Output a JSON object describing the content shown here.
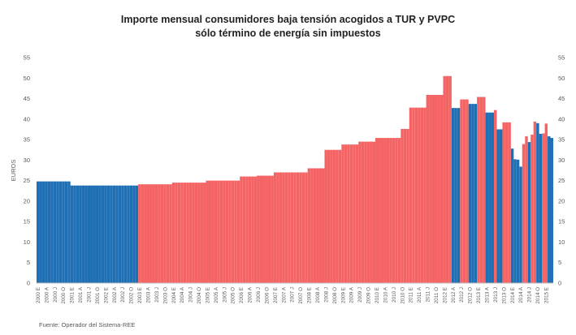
{
  "chart_data": {
    "type": "bar",
    "title_lines": [
      "Importe mensual consumidores baja tensión acogidos a TUR y PVPC",
      "sólo término de energía sin impuestos"
    ],
    "ylabel": "EUROS",
    "ylim": [
      0,
      55
    ],
    "yticks": [
      0,
      5,
      10,
      15,
      20,
      25,
      30,
      35,
      40,
      45,
      50,
      55
    ],
    "secondary_y_axis": true,
    "grid": false,
    "source": "Fuente: Operador del Sistema-REE",
    "colors": {
      "blue": "#1f6fb4",
      "red": "#f46464"
    },
    "x_labels": [
      "2000 E",
      "2000 A",
      "2000 J",
      "2000 O",
      "2001 E",
      "2001 A",
      "2001 J",
      "2001 O",
      "2002 E",
      "2002 A",
      "2002 J",
      "2002 O",
      "2003 E",
      "2003 A",
      "2003 J",
      "2003 O",
      "2004 E",
      "2004 A",
      "2004 J",
      "2004 O",
      "2005 E",
      "2005 A",
      "2005 J",
      "2005 O",
      "2006 E",
      "2006 A",
      "2006 J",
      "2006 O",
      "2007 E",
      "2007 A",
      "2007 J",
      "2007 O",
      "2008 E",
      "2008 A",
      "2008 J",
      "2008 O",
      "2009 E",
      "2009 A",
      "2009 J",
      "2009 O",
      "2010 E",
      "2010 A",
      "2010 J",
      "2010 O",
      "2011 E",
      "2011 A",
      "2011 J",
      "2011 O",
      "2012 E",
      "2012 A",
      "2012 J",
      "2012 O",
      "2013 E",
      "2013 A",
      "2013 J",
      "2013 O",
      "2014 E",
      "2014 A",
      "2014 J",
      "2014 O",
      "2015 E"
    ],
    "series": [
      {
        "color": "blue",
        "values": [
          24.8,
          24.8,
          24.8,
          24.8,
          24.8,
          24.8,
          24.8,
          24.8,
          24.8,
          24.8,
          24.8,
          24.8,
          23.8,
          23.8,
          23.8,
          23.8,
          23.8,
          23.8,
          23.8,
          23.8,
          23.8,
          23.8,
          23.8,
          23.8,
          23.8,
          23.8,
          23.8,
          23.8,
          23.8,
          23.8,
          23.8,
          23.8,
          23.8,
          23.8,
          23.8,
          23.8
        ]
      },
      {
        "color": "red",
        "values": [
          24.1,
          24.1,
          24.1,
          24.1,
          24.1,
          24.1,
          24.1,
          24.1,
          24.1,
          24.1,
          24.1,
          24.1,
          24.5,
          24.5,
          24.5,
          24.5,
          24.5,
          24.5,
          24.5,
          24.5,
          24.5,
          24.5,
          24.5,
          24.5,
          25.0,
          25.0,
          25.0,
          25.0,
          25.0,
          25.0,
          25.0,
          25.0,
          25.0,
          25.0,
          25.0,
          25.0,
          26.0,
          26.0,
          26.0,
          26.0,
          26.0,
          26.0,
          26.2,
          26.2,
          26.2,
          26.2,
          26.2,
          26.2,
          27.0,
          27.0,
          27.0,
          27.0,
          27.0,
          27.0,
          27.0,
          27.0,
          27.0,
          27.0,
          27.0,
          27.0,
          28.0,
          28.0,
          28.0,
          28.0,
          28.0,
          28.0,
          32.5,
          32.5,
          32.5,
          32.5,
          32.5,
          32.5,
          33.8,
          33.8,
          33.8,
          33.8,
          33.8,
          33.8,
          34.5,
          34.5,
          34.5,
          34.5,
          34.5,
          34.5,
          35.4,
          35.4,
          35.4,
          35.4,
          35.4,
          35.4,
          35.4,
          35.4,
          35.4,
          37.6,
          37.6,
          37.6,
          42.8,
          42.8,
          42.8,
          42.8,
          42.8,
          42.8,
          45.9,
          45.9,
          45.9,
          45.9,
          45.9,
          45.9,
          50.5,
          50.5,
          50.5
        ]
      },
      {
        "color": "mixed",
        "values": [
          {
            "v": 42.7,
            "c": "blue"
          },
          {
            "v": 42.7,
            "c": "blue"
          },
          {
            "v": 42.7,
            "c": "blue"
          },
          {
            "v": 44.8,
            "c": "red"
          },
          {
            "v": 44.8,
            "c": "red"
          },
          {
            "v": 44.8,
            "c": "red"
          },
          {
            "v": 43.7,
            "c": "blue"
          },
          {
            "v": 43.7,
            "c": "blue"
          },
          {
            "v": 43.7,
            "c": "blue"
          },
          {
            "v": 45.4,
            "c": "red"
          },
          {
            "v": 45.4,
            "c": "red"
          },
          {
            "v": 45.4,
            "c": "red"
          },
          {
            "v": 41.6,
            "c": "blue"
          },
          {
            "v": 41.6,
            "c": "blue"
          },
          {
            "v": 41.6,
            "c": "blue"
          },
          {
            "v": 42.2,
            "c": "red"
          },
          {
            "v": 37.5,
            "c": "blue"
          },
          {
            "v": 37.5,
            "c": "blue"
          },
          {
            "v": 39.2,
            "c": "red"
          },
          {
            "v": 39.2,
            "c": "red"
          },
          {
            "v": 39.2,
            "c": "red"
          },
          {
            "v": 32.8,
            "c": "blue"
          },
          {
            "v": 30.2,
            "c": "blue"
          },
          {
            "v": 30.1,
            "c": "blue"
          },
          {
            "v": 28.4,
            "c": "blue"
          },
          {
            "v": 33.9,
            "c": "red"
          },
          {
            "v": 35.8,
            "c": "red"
          },
          {
            "v": 34.4,
            "c": "blue"
          },
          {
            "v": 36.2,
            "c": "red"
          },
          {
            "v": 39.4,
            "c": "red"
          },
          {
            "v": 39.0,
            "c": "blue"
          },
          {
            "v": 36.4,
            "c": "blue"
          },
          {
            "v": 36.5,
            "c": "red"
          },
          {
            "v": 38.9,
            "c": "red"
          },
          {
            "v": 35.8,
            "c": "blue"
          },
          {
            "v": 35.4,
            "c": "blue"
          }
        ]
      }
    ]
  }
}
